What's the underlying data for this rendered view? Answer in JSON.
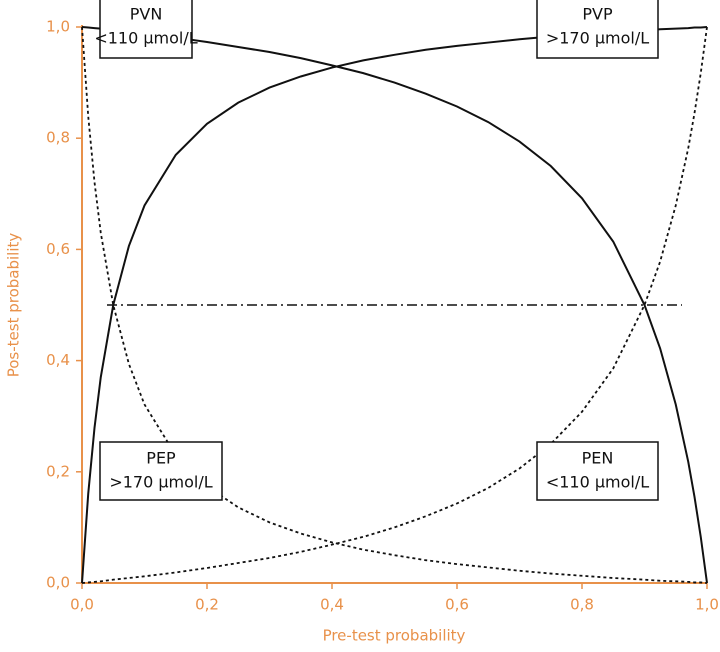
{
  "chart_data": {
    "type": "line",
    "xlabel": "Pre-test probability",
    "ylabel": "Pos-test probability",
    "xlim": [
      0,
      1
    ],
    "ylim": [
      0,
      1
    ],
    "xticks": [
      {
        "value": 0,
        "label": "0,0"
      },
      {
        "value": 0.2,
        "label": "0,2"
      },
      {
        "value": 0.4,
        "label": "0,4"
      },
      {
        "value": 0.6,
        "label": "0,6"
      },
      {
        "value": 0.8,
        "label": "0,8"
      },
      {
        "value": 1,
        "label": "1,0"
      }
    ],
    "yticks": [
      {
        "value": 0,
        "label": "0,0"
      },
      {
        "value": 0.2,
        "label": "0,2"
      },
      {
        "value": 0.4,
        "label": "0,4"
      },
      {
        "value": 0.6,
        "label": "0,6"
      },
      {
        "value": 0.8,
        "label": "0,8"
      },
      {
        "value": 1,
        "label": "1,0"
      }
    ],
    "axis_color": "#e8914a",
    "x": [
      0,
      0.01,
      0.02,
      0.03,
      0.05,
      0.075,
      0.1,
      0.15,
      0.2,
      0.25,
      0.3,
      0.35,
      0.4,
      0.45,
      0.5,
      0.55,
      0.6,
      0.65,
      0.7,
      0.75,
      0.8,
      0.85,
      0.9,
      0.925,
      0.95,
      0.97,
      0.98,
      0.99,
      1
    ],
    "series": [
      {
        "name": "PVN",
        "threshold": "<110 µmol/L",
        "color": "#111111",
        "dash": "solid",
        "values": [
          1,
          0.999,
          0.998,
          0.997,
          0.994,
          0.991,
          0.988,
          0.981,
          0.973,
          0.964,
          0.955,
          0.944,
          0.931,
          0.917,
          0.9,
          0.88,
          0.857,
          0.829,
          0.794,
          0.75,
          0.692,
          0.614,
          0.5,
          0.422,
          0.321,
          0.218,
          0.155,
          0.083,
          0
        ]
      },
      {
        "name": "PVP",
        "threshold": ">170 µmol/L",
        "color": "#111111",
        "dash": "solid",
        "values": [
          0,
          0.161,
          0.279,
          0.37,
          0.5,
          0.606,
          0.679,
          0.77,
          0.826,
          0.864,
          0.891,
          0.911,
          0.927,
          0.94,
          0.95,
          0.959,
          0.966,
          0.972,
          0.978,
          0.983,
          0.987,
          0.991,
          0.994,
          0.996,
          0.997,
          0.998,
          0.999,
          0.999,
          1
        ]
      },
      {
        "name": "PEP",
        "threshold": ">170 µmol/L",
        "color": "#111111",
        "dash": "dotted",
        "values": [
          1,
          0.839,
          0.721,
          0.63,
          0.5,
          0.394,
          0.321,
          0.23,
          0.174,
          0.136,
          0.109,
          0.089,
          0.073,
          0.06,
          0.05,
          0.041,
          0.034,
          0.028,
          0.022,
          0.017,
          0.013,
          0.009,
          0.006,
          0.004,
          0.003,
          0.002,
          0.001,
          0.001,
          0
        ]
      },
      {
        "name": "PEN",
        "threshold": "<110 µmol/L",
        "color": "#111111",
        "dash": "dotted",
        "values": [
          0,
          0.001,
          0.002,
          0.003,
          0.006,
          0.009,
          0.012,
          0.019,
          0.027,
          0.036,
          0.045,
          0.056,
          0.069,
          0.083,
          0.1,
          0.12,
          0.143,
          0.171,
          0.206,
          0.25,
          0.308,
          0.386,
          0.5,
          0.578,
          0.679,
          0.782,
          0.845,
          0.917,
          1
        ]
      }
    ],
    "reference_line": {
      "y": 0.5,
      "x": [
        0.04,
        0.96
      ],
      "dash": "dashdot",
      "color": "#111111"
    }
  }
}
